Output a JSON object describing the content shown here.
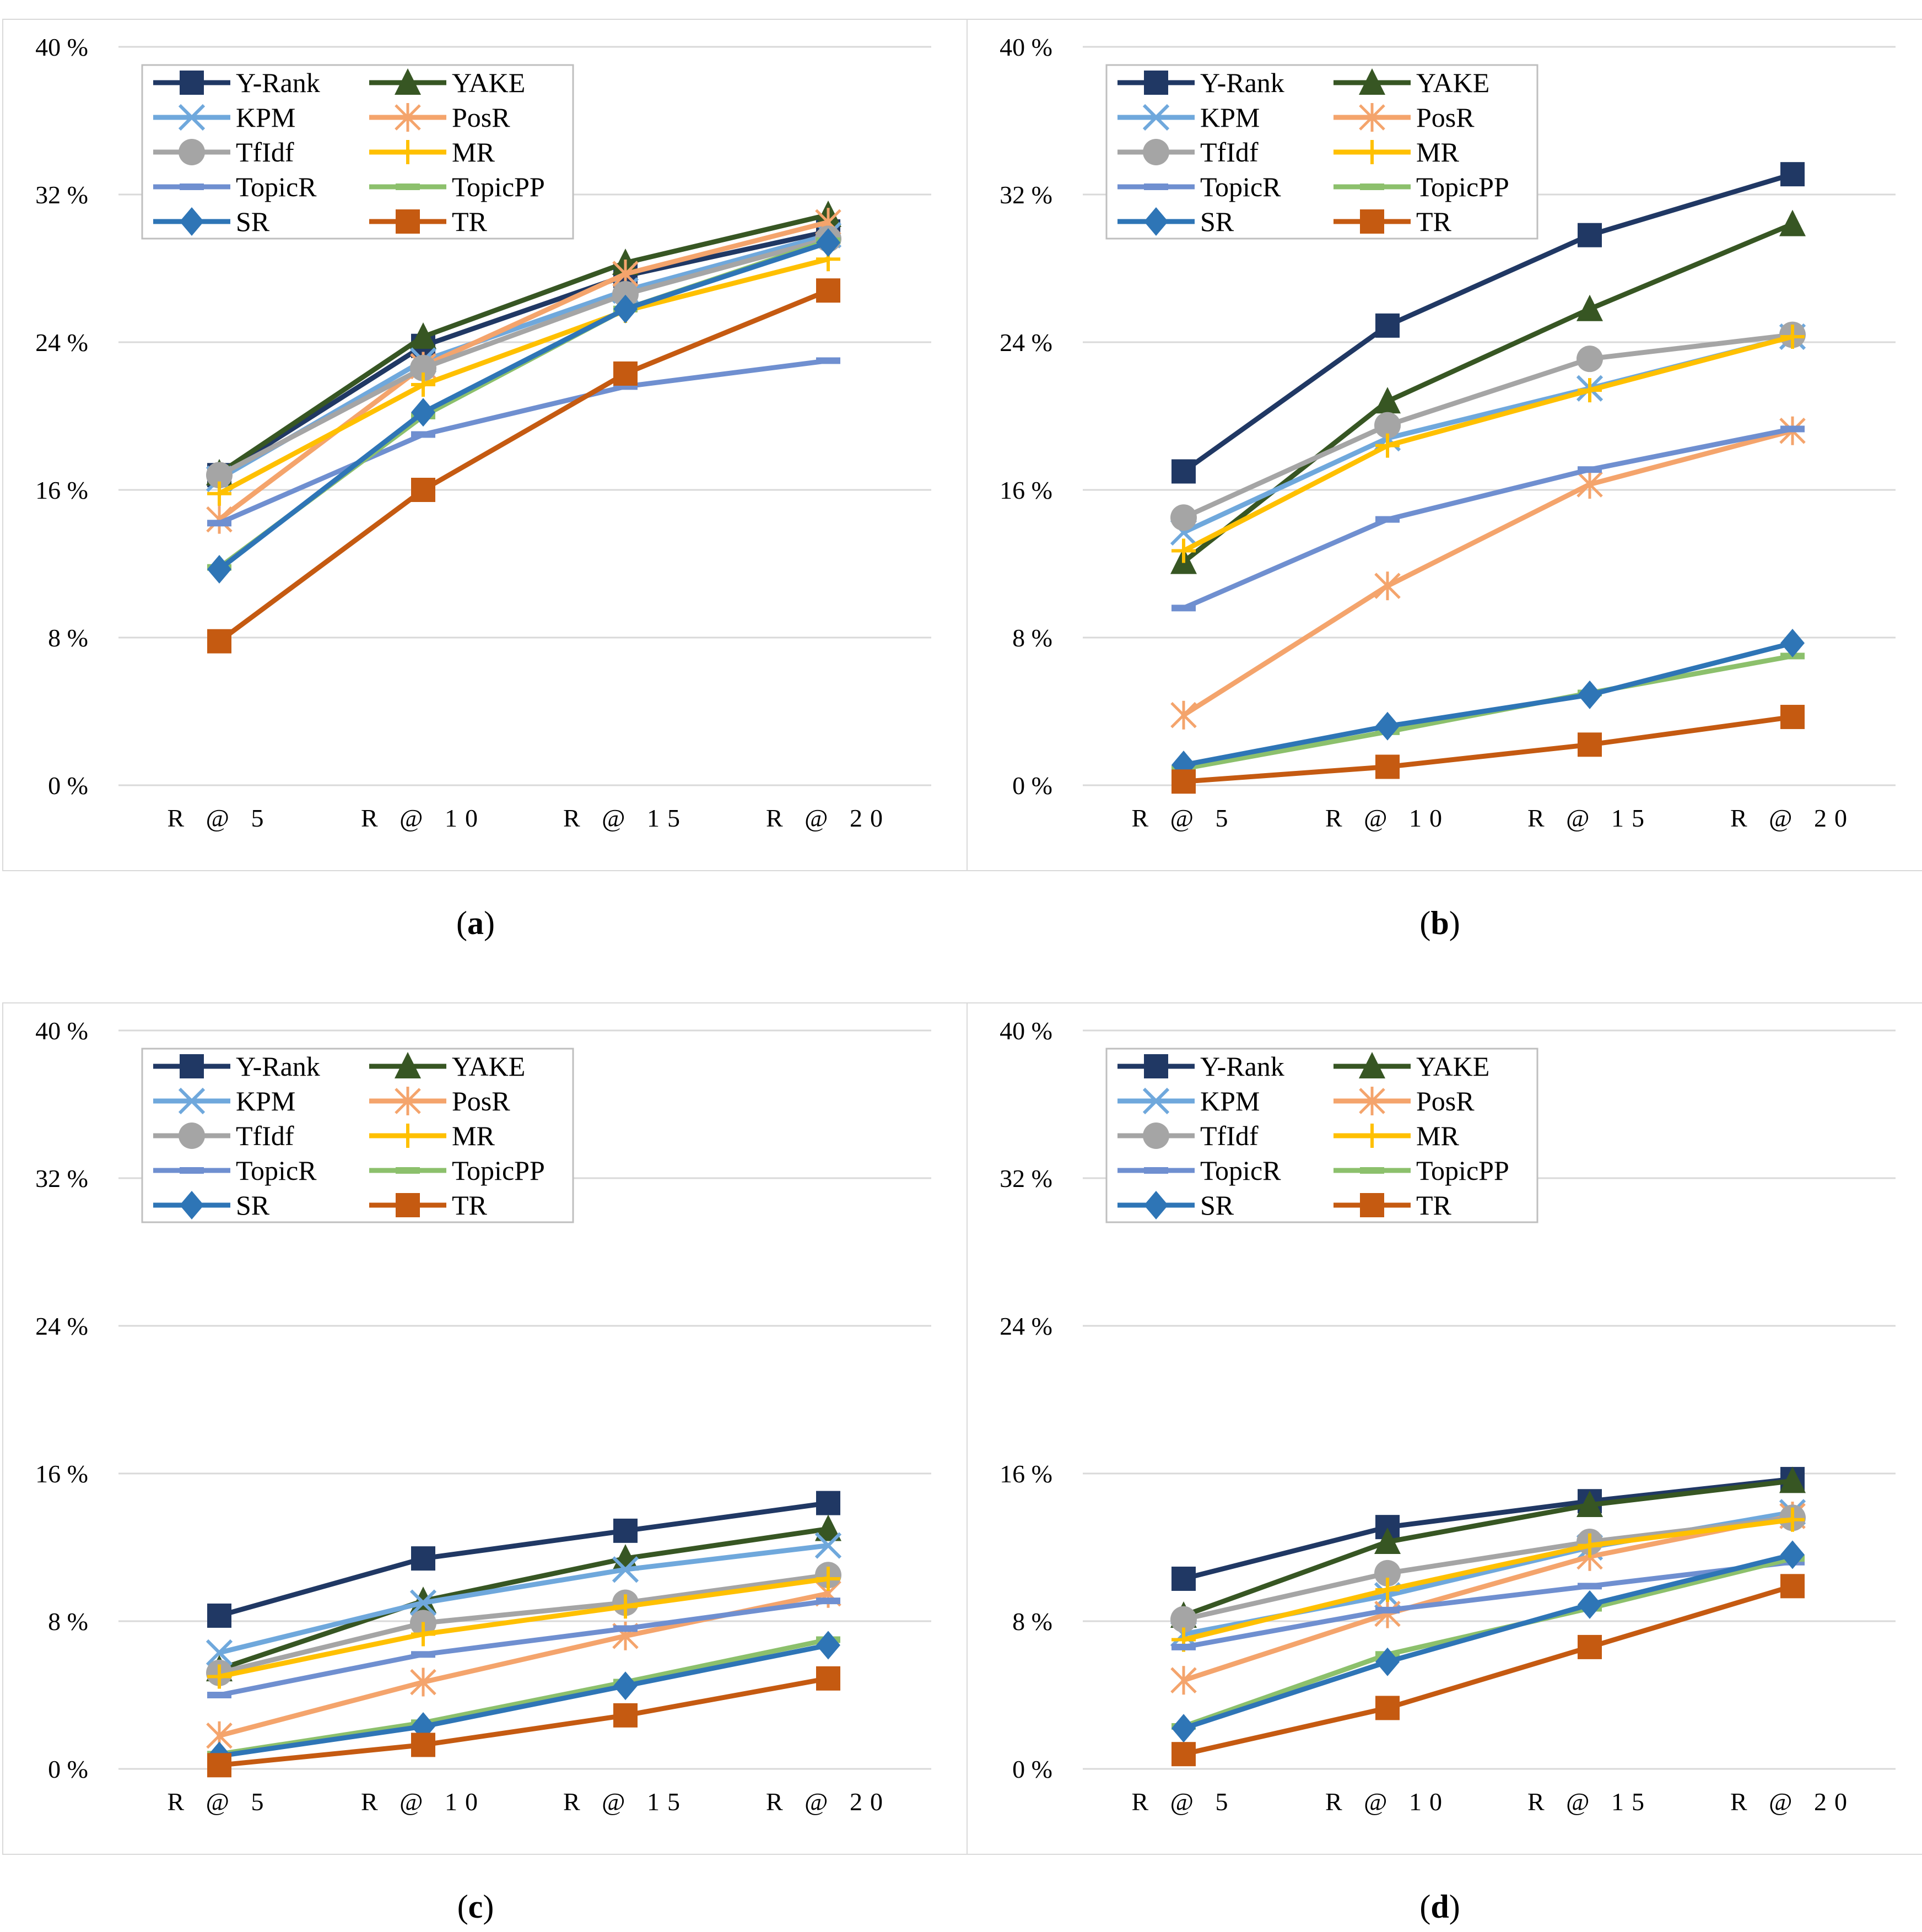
{
  "chart_data": [
    {
      "panel": "a",
      "type": "line",
      "caption": "a",
      "categories": [
        "R @ 5",
        "R @ 10",
        "R @ 15",
        "R @ 20"
      ],
      "ylim": [
        0,
        40
      ],
      "yticks": [
        "0 %",
        "8 %",
        "16 %",
        "24 %",
        "32 %",
        "40 %"
      ],
      "legend_position": "top-left",
      "grid": true,
      "series": [
        {
          "name": "Y-Rank",
          "values": [
            16.8,
            23.8,
            27.6,
            30.0
          ]
        },
        {
          "name": "YAKE",
          "values": [
            16.9,
            24.3,
            28.3,
            30.9
          ]
        },
        {
          "name": "KPM",
          "values": [
            16.6,
            23.0,
            26.8,
            29.8
          ]
        },
        {
          "name": "PosR",
          "values": [
            14.4,
            22.7,
            27.7,
            30.5
          ]
        },
        {
          "name": "TfIdf",
          "values": [
            16.8,
            22.6,
            26.6,
            29.6
          ]
        },
        {
          "name": "MR",
          "values": [
            15.8,
            21.7,
            25.7,
            28.5
          ]
        },
        {
          "name": "TopicR",
          "values": [
            14.2,
            19.0,
            21.6,
            23.0
          ]
        },
        {
          "name": "TopicPP",
          "values": [
            11.8,
            20.0,
            25.8,
            29.5
          ]
        },
        {
          "name": "SR",
          "values": [
            11.7,
            20.2,
            25.8,
            29.4
          ]
        },
        {
          "name": "TR",
          "values": [
            7.8,
            16.0,
            22.3,
            26.8
          ]
        }
      ]
    },
    {
      "panel": "b",
      "type": "line",
      "caption": "b",
      "categories": [
        "R @ 5",
        "R @ 10",
        "R @ 15",
        "R @ 20"
      ],
      "ylim": [
        0,
        40
      ],
      "yticks": [
        "0 %",
        "8 %",
        "16 %",
        "24 %",
        "32 %",
        "40 %"
      ],
      "legend_position": "top-left",
      "grid": true,
      "series": [
        {
          "name": "Y-Rank",
          "values": [
            17.0,
            24.9,
            29.8,
            33.1
          ]
        },
        {
          "name": "YAKE",
          "values": [
            12.1,
            20.8,
            25.8,
            30.4
          ]
        },
        {
          "name": "KPM",
          "values": [
            13.7,
            18.8,
            21.5,
            24.3
          ]
        },
        {
          "name": "PosR",
          "values": [
            3.8,
            10.8,
            16.3,
            19.2
          ]
        },
        {
          "name": "TfIdf",
          "values": [
            14.5,
            19.5,
            23.1,
            24.4
          ]
        },
        {
          "name": "MR",
          "values": [
            12.7,
            18.4,
            21.4,
            24.3
          ]
        },
        {
          "name": "TopicR",
          "values": [
            9.6,
            14.4,
            17.1,
            19.3
          ]
        },
        {
          "name": "TopicPP",
          "values": [
            0.9,
            2.9,
            5.0,
            7.0
          ]
        },
        {
          "name": "SR",
          "values": [
            1.1,
            3.2,
            4.9,
            7.7
          ]
        },
        {
          "name": "TR",
          "values": [
            0.2,
            1.0,
            2.2,
            3.7
          ]
        }
      ]
    },
    {
      "panel": "c",
      "type": "line",
      "caption": "c",
      "categories": [
        "R @ 5",
        "R @ 10",
        "R @ 15",
        "R @ 20"
      ],
      "ylim": [
        0,
        40
      ],
      "yticks": [
        "0 %",
        "8 %",
        "16 %",
        "24 %",
        "32 %",
        "40 %"
      ],
      "legend_position": "top-left",
      "grid": true,
      "series": [
        {
          "name": "Y-Rank",
          "values": [
            8.3,
            11.4,
            12.9,
            14.4
          ]
        },
        {
          "name": "YAKE",
          "values": [
            5.4,
            9.1,
            11.4,
            13.0
          ]
        },
        {
          "name": "KPM",
          "values": [
            6.3,
            9.0,
            10.8,
            12.1
          ]
        },
        {
          "name": "PosR",
          "values": [
            1.8,
            4.7,
            7.2,
            9.5
          ]
        },
        {
          "name": "TfIdf",
          "values": [
            5.2,
            7.9,
            9.0,
            10.5
          ]
        },
        {
          "name": "MR",
          "values": [
            5.0,
            7.3,
            8.8,
            10.3
          ]
        },
        {
          "name": "TopicR",
          "values": [
            4.0,
            6.2,
            7.6,
            9.1
          ]
        },
        {
          "name": "TopicPP",
          "values": [
            0.8,
            2.5,
            4.7,
            7.0
          ]
        },
        {
          "name": "SR",
          "values": [
            0.7,
            2.3,
            4.5,
            6.7
          ]
        },
        {
          "name": "TR",
          "values": [
            0.2,
            1.3,
            2.9,
            4.9
          ]
        }
      ]
    },
    {
      "panel": "d",
      "type": "line",
      "caption": "d",
      "categories": [
        "R @ 5",
        "R @ 10",
        "R @ 15",
        "R @ 20"
      ],
      "ylim": [
        0,
        40
      ],
      "yticks": [
        "0 %",
        "8 %",
        "16 %",
        "24 %",
        "32 %",
        "40 %"
      ],
      "legend_position": "top-left",
      "grid": true,
      "series": [
        {
          "name": "Y-Rank",
          "values": [
            10.3,
            13.1,
            14.5,
            15.7
          ]
        },
        {
          "name": "YAKE",
          "values": [
            8.3,
            12.3,
            14.3,
            15.6
          ]
        },
        {
          "name": "KPM",
          "values": [
            7.3,
            9.4,
            12.0,
            13.9
          ]
        },
        {
          "name": "PosR",
          "values": [
            4.8,
            8.4,
            11.5,
            13.7
          ]
        },
        {
          "name": "TfIdf",
          "values": [
            8.1,
            10.6,
            12.3,
            13.6
          ]
        },
        {
          "name": "MR",
          "values": [
            7.0,
            9.7,
            12.1,
            13.5
          ]
        },
        {
          "name": "TopicR",
          "values": [
            6.6,
            8.6,
            9.9,
            11.2
          ]
        },
        {
          "name": "TopicPP",
          "values": [
            2.3,
            6.2,
            8.7,
            11.4
          ]
        },
        {
          "name": "SR",
          "values": [
            2.2,
            5.8,
            8.9,
            11.6
          ]
        },
        {
          "name": "TR",
          "values": [
            0.8,
            3.3,
            6.6,
            9.9
          ]
        }
      ]
    }
  ],
  "series_styles": {
    "Y-Rank": {
      "color": "#203864",
      "marker": "square"
    },
    "YAKE": {
      "color": "#375623",
      "marker": "triangle"
    },
    "KPM": {
      "color": "#6fa8dc",
      "marker": "x"
    },
    "PosR": {
      "color": "#f4a46c",
      "marker": "star"
    },
    "TfIdf": {
      "color": "#a5a5a5",
      "marker": "circle"
    },
    "MR": {
      "color": "#ffc000",
      "marker": "plus"
    },
    "TopicR": {
      "color": "#6f8fd0",
      "marker": "dash"
    },
    "TopicPP": {
      "color": "#8cc06c",
      "marker": "dash"
    },
    "SR": {
      "color": "#2e75b6",
      "marker": "diamond"
    },
    "TR": {
      "color": "#c55a11",
      "marker": "square"
    }
  }
}
